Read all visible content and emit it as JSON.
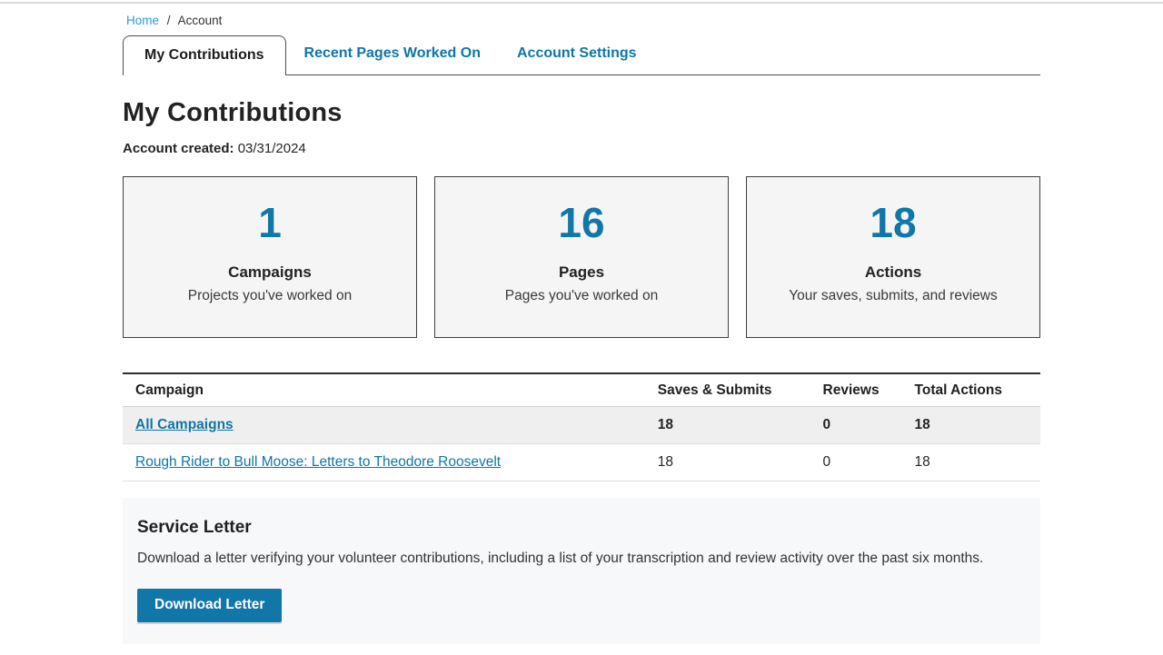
{
  "breadcrumb": {
    "home": "Home",
    "separator": "/",
    "current": "Account"
  },
  "tabs": [
    {
      "label": "My Contributions",
      "active": true
    },
    {
      "label": "Recent Pages Worked On",
      "active": false
    },
    {
      "label": "Account Settings",
      "active": false
    }
  ],
  "header": {
    "title": "My Contributions",
    "account_created_label": "Account created:",
    "account_created_value": "03/31/2024"
  },
  "stats": [
    {
      "value": "1",
      "label": "Campaigns",
      "description": "Projects you've worked on"
    },
    {
      "value": "16",
      "label": "Pages",
      "description": "Pages you've worked on"
    },
    {
      "value": "18",
      "label": "Actions",
      "description": "Your saves, submits, and reviews"
    }
  ],
  "table": {
    "columns": [
      "Campaign",
      "Saves & Submits",
      "Reviews",
      "Total Actions"
    ],
    "rows": [
      {
        "campaign": "All Campaigns",
        "saves_submits": "18",
        "reviews": "0",
        "total_actions": "18"
      },
      {
        "campaign": "Rough Rider to Bull Moose: Letters to Theodore Roosevelt",
        "saves_submits": "18",
        "reviews": "0",
        "total_actions": "18"
      }
    ]
  },
  "service_letter": {
    "title": "Service Letter",
    "description": "Download a letter verifying your volunteer contributions, including a list of your transcription and review activity over the past six months.",
    "button_label": "Download Letter"
  },
  "colors": {
    "primary_blue": "#1176a8",
    "link_blue": "#0e76a8",
    "breadcrumb_link_blue": "#2f9ad2",
    "card_background": "#f5f5f5",
    "summary_row_background": "#efefef",
    "service_section_background": "#f7f8f9"
  }
}
